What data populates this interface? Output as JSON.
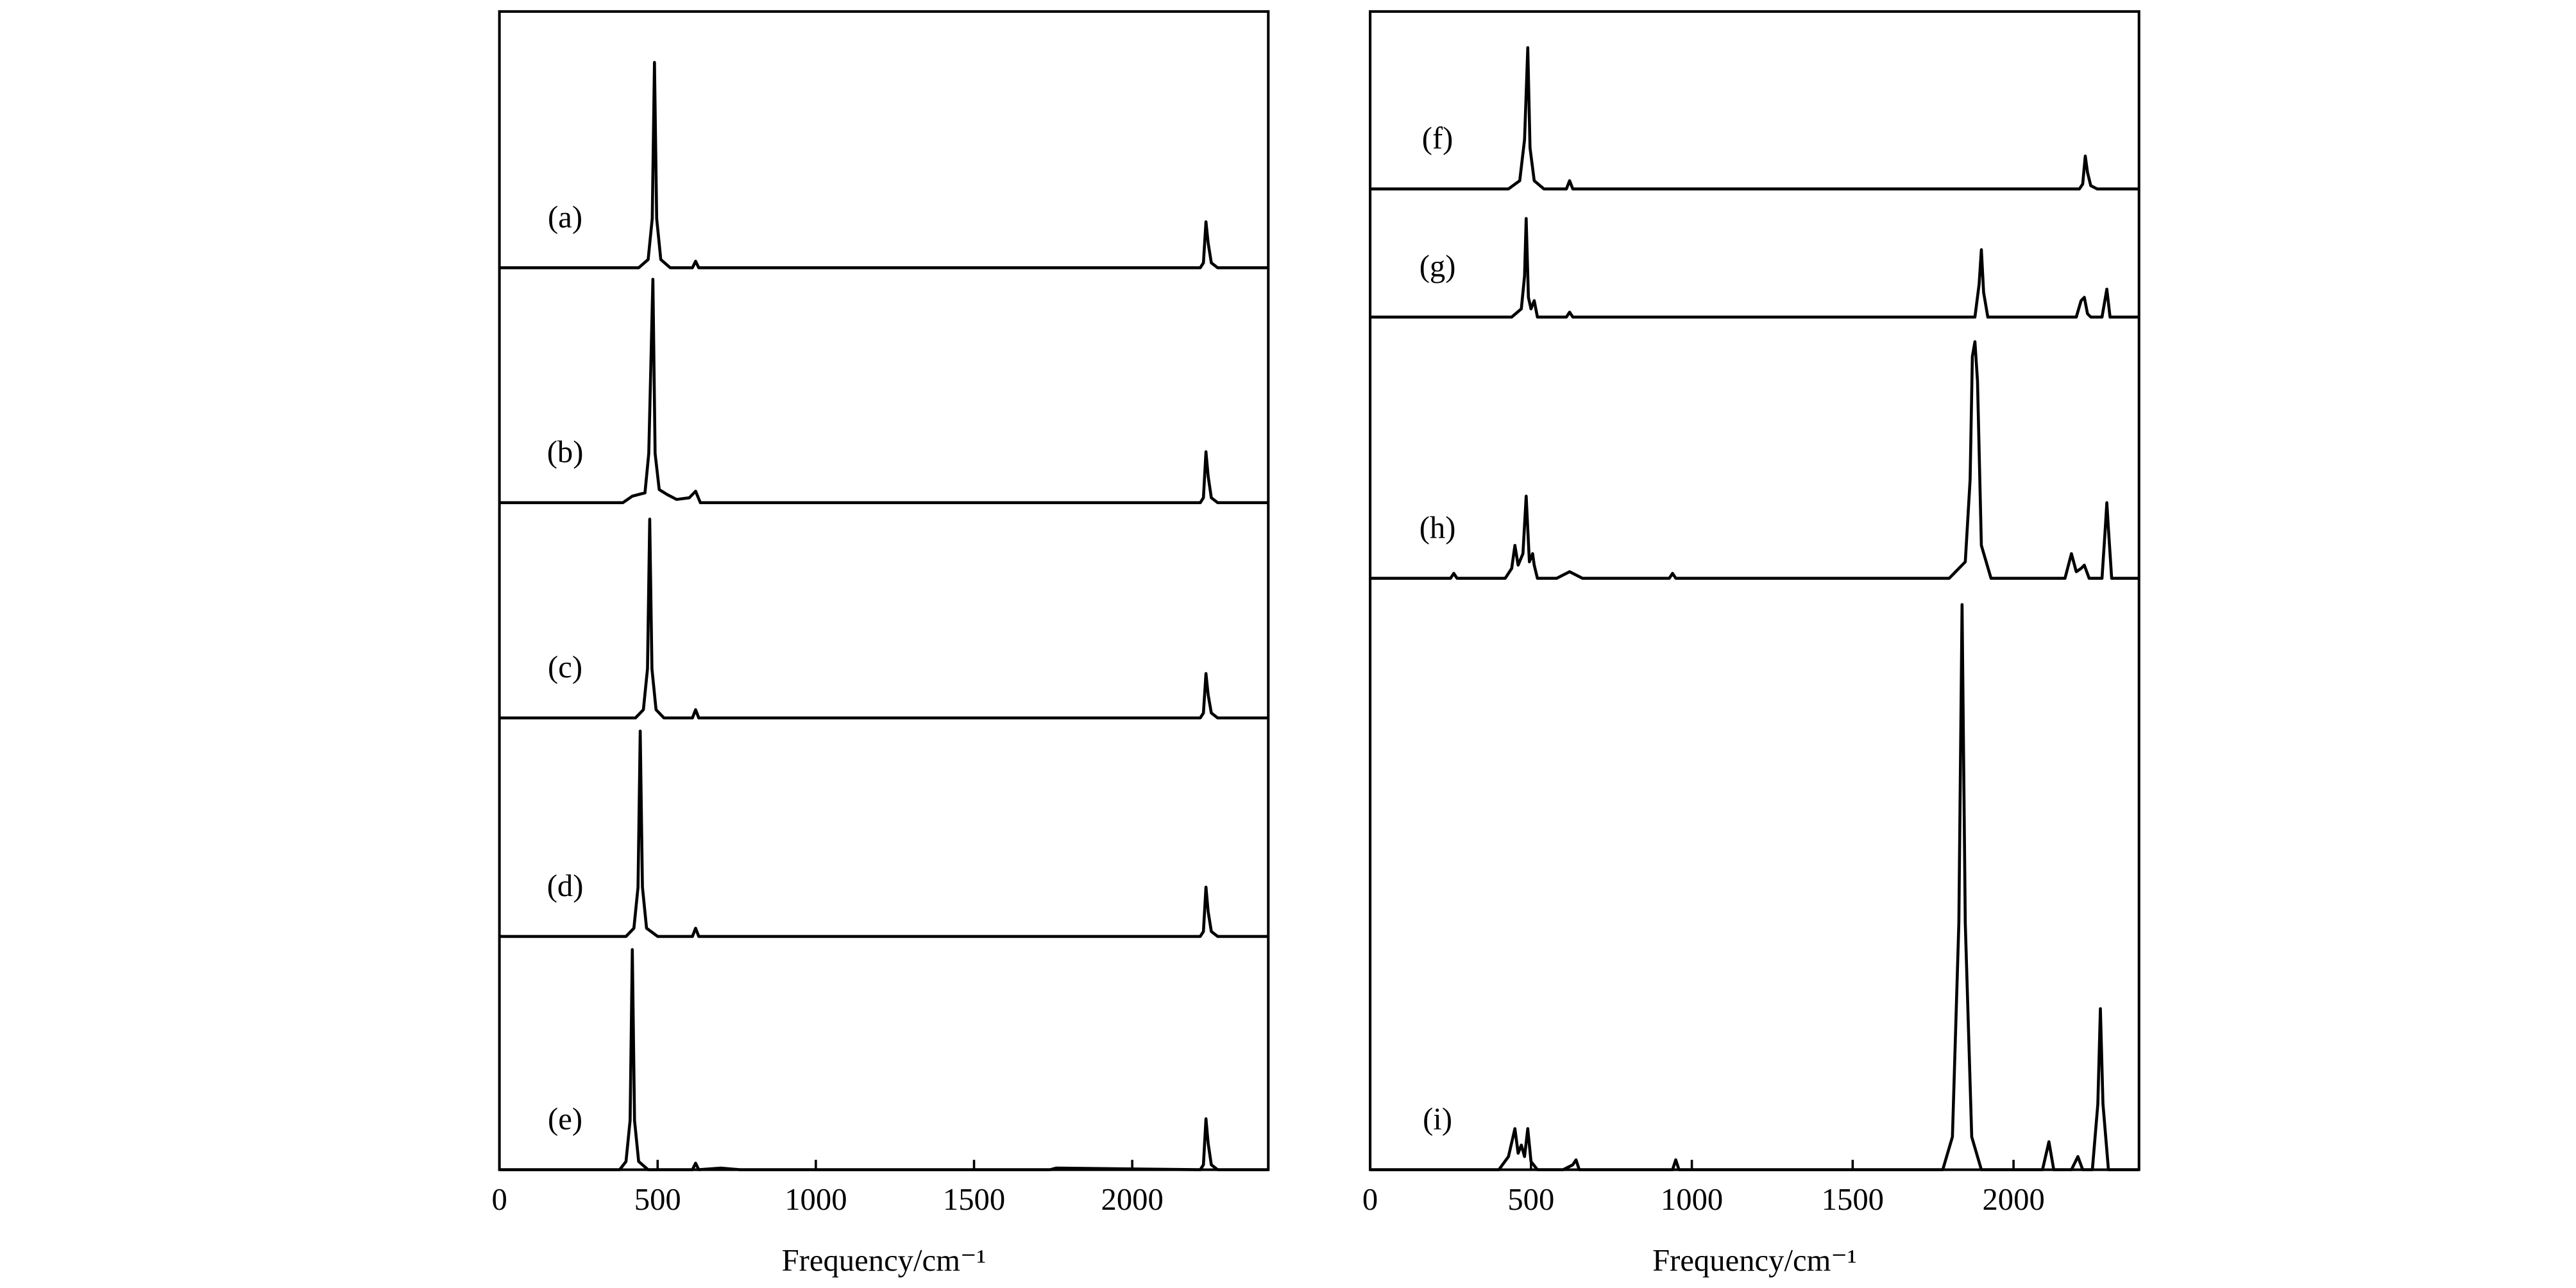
{
  "chart_data": [
    {
      "type": "line",
      "xlabel": "Frequency/cm⁻¹",
      "xlim": [
        0,
        2430
      ],
      "xticks": [
        0,
        500,
        1000,
        1500,
        2000
      ],
      "series": [
        {
          "name": "(a)",
          "color": "#000000",
          "x": [
            0,
            440,
            470,
            483,
            490,
            497,
            510,
            540,
            610,
            620,
            630,
            2215,
            2225,
            2233,
            2240,
            2250,
            2270,
            2430
          ],
          "values": [
            0,
            0,
            5,
            30,
            125,
            30,
            5,
            0,
            0,
            4,
            0,
            0,
            3,
            28,
            15,
            3,
            0,
            0
          ]
        },
        {
          "name": "(b)",
          "color": "#000000",
          "x": [
            0,
            390,
            420,
            460,
            472,
            485,
            492,
            505,
            530,
            560,
            600,
            620,
            635,
            2215,
            2225,
            2233,
            2240,
            2250,
            2270,
            2430
          ],
          "values": [
            0,
            0,
            4,
            6,
            30,
            136,
            30,
            8,
            5,
            2,
            3,
            7,
            0,
            0,
            3,
            31,
            16,
            3,
            0,
            0
          ]
        },
        {
          "name": "(c)",
          "color": "#000000",
          "x": [
            0,
            430,
            455,
            468,
            475,
            482,
            495,
            520,
            610,
            620,
            630,
            2215,
            2225,
            2233,
            2240,
            2250,
            2270,
            2430
          ],
          "values": [
            0,
            0,
            5,
            30,
            121,
            30,
            5,
            0,
            0,
            5,
            0,
            0,
            3,
            27,
            14,
            3,
            0,
            0
          ]
        },
        {
          "name": "(d)",
          "color": "#000000",
          "x": [
            0,
            400,
            425,
            438,
            445,
            452,
            465,
            500,
            610,
            620,
            630,
            2215,
            2225,
            2233,
            2240,
            2250,
            2270,
            2430
          ],
          "values": [
            0,
            0,
            5,
            30,
            125,
            30,
            5,
            0,
            0,
            5,
            0,
            0,
            3,
            30,
            15,
            3,
            0,
            0
          ]
        },
        {
          "name": "(e)",
          "color": "#000000",
          "x": [
            0,
            380,
            400,
            413,
            420,
            427,
            440,
            470,
            610,
            620,
            630,
            700,
            760,
            1740,
            1760,
            2215,
            2225,
            2233,
            2240,
            2250,
            2270,
            2430
          ],
          "values": [
            0,
            0,
            5,
            30,
            134,
            30,
            5,
            0,
            0,
            4,
            0,
            1,
            0,
            0,
            1,
            0,
            3,
            31,
            16,
            3,
            0,
            0
          ]
        }
      ]
    },
    {
      "type": "line",
      "xlabel": "Frequency/cm⁻¹",
      "xlim": [
        0,
        2390
      ],
      "xticks": [
        0,
        500,
        1000,
        1500,
        2000
      ],
      "series": [
        {
          "name": "(f)",
          "color": "#000000",
          "x": [
            0,
            430,
            465,
            480,
            490,
            497,
            510,
            540,
            610,
            620,
            630,
            2205,
            2215,
            2223,
            2230,
            2240,
            2260,
            2390
          ],
          "values": [
            0,
            0,
            5,
            30,
            86,
            25,
            5,
            0,
            0,
            5,
            0,
            0,
            3,
            20,
            10,
            2,
            0,
            0
          ]
        },
        {
          "name": "(g)",
          "color": "#000000",
          "x": [
            0,
            440,
            470,
            480,
            485,
            492,
            500,
            510,
            520,
            610,
            620,
            630,
            1880,
            1893,
            1900,
            1907,
            1920,
            2195,
            2210,
            2220,
            2230,
            2240,
            2275,
            2290,
            2300,
            2390
          ],
          "values": [
            0,
            0,
            5,
            25,
            60,
            12,
            5,
            10,
            0,
            0,
            3,
            0,
            0,
            20,
            41,
            15,
            0,
            0,
            10,
            12,
            2,
            0,
            0,
            17,
            0,
            0
          ]
        },
        {
          "name": "(h)",
          "color": "#000000",
          "x": [
            0,
            250,
            260,
            270,
            420,
            440,
            450,
            460,
            475,
            485,
            495,
            505,
            510,
            520,
            580,
            620,
            660,
            930,
            940,
            950,
            1800,
            1850,
            1865,
            1872,
            1880,
            1888,
            1900,
            1930,
            2160,
            2180,
            2195,
            2210,
            2220,
            2235,
            2275,
            2285,
            2290,
            2295,
            2305,
            2390
          ],
          "values": [
            0,
            0,
            3,
            0,
            0,
            6,
            20,
            8,
            15,
            50,
            10,
            15,
            8,
            0,
            0,
            4,
            0,
            0,
            3,
            0,
            0,
            10,
            60,
            135,
            144,
            120,
            20,
            0,
            0,
            15,
            4,
            6,
            8,
            0,
            0,
            30,
            46,
            30,
            0,
            0
          ]
        },
        {
          "name": "(i)",
          "color": "#000000",
          "x": [
            0,
            400,
            430,
            450,
            460,
            470,
            480,
            490,
            500,
            520,
            600,
            630,
            640,
            650,
            940,
            950,
            960,
            1780,
            1810,
            1830,
            1840,
            1850,
            1870,
            1900,
            2090,
            2110,
            2125,
            2180,
            2200,
            2215,
            2245,
            2262,
            2270,
            2278,
            2295,
            2390
          ],
          "values": [
            0,
            0,
            8,
            25,
            10,
            15,
            8,
            25,
            5,
            0,
            0,
            3,
            6,
            0,
            0,
            6,
            0,
            0,
            20,
            150,
            344,
            150,
            20,
            0,
            0,
            17,
            0,
            0,
            8,
            0,
            0,
            40,
            98,
            40,
            0,
            0
          ]
        }
      ]
    }
  ]
}
